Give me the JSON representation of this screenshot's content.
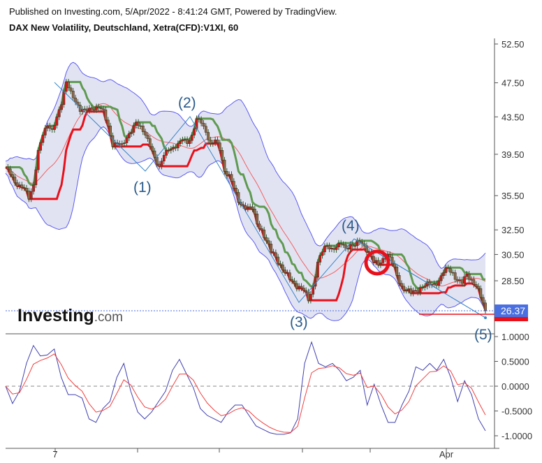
{
  "header": {
    "published": "Published on Investing.com, 5/Apr/2022 - 8:41:24 GMT, Powered by TradingView.",
    "title": "DAX New Volatility, Deutschland, Xetra(CFD):V1XI, 60"
  },
  "logo": {
    "main": "Investing",
    "suffix": ".com"
  },
  "colors": {
    "band_fill": "#e2e3f2",
    "band_line": "#5b5bf0",
    "sma": "#f06060",
    "green_line": "#5e9a50",
    "red_line": "#e8101a",
    "wave": "#3a86c8",
    "osc_blue": "#4040b0",
    "osc_red": "#f04040",
    "price_tag": "#4a6fe0"
  },
  "chart_data": [
    {
      "type": "candlestick",
      "scale": "log",
      "ylim": [
        24.0,
        54.0
      ],
      "y_ticks": [
        "52.50",
        "47.50",
        "43.50",
        "39.50",
        "35.50",
        "32.50",
        "30.50",
        "28.50"
      ],
      "x_ticks": [
        "7",
        "",
        "",
        "",
        "",
        "Apr"
      ],
      "last_price": "26.37",
      "close": [
        38.2,
        37.5,
        36.7,
        36.5,
        36.2,
        35.2,
        36.5,
        39.9,
        41.5,
        42.5,
        42.1,
        43.5,
        44.9,
        47.6,
        46.5,
        45.2,
        44.1,
        44.4,
        44.5,
        44.3,
        44.5,
        44.3,
        42.5,
        40.3,
        40.6,
        40.6,
        41.2,
        41.8,
        42.9,
        42.5,
        41.5,
        40.3,
        39.2,
        38.3,
        39.4,
        39.9,
        40.2,
        40.6,
        41.0,
        40.6,
        41.5,
        43.3,
        42.8,
        41.8,
        40.6,
        41.0,
        39.9,
        37.8,
        37.5,
        36.2,
        34.9,
        34.6,
        34.5,
        34.3,
        33.0,
        32.5,
        31.6,
        30.7,
        30.3,
        29.7,
        29.1,
        28.6,
        28.3,
        28.1,
        27.8,
        27.1,
        28.1,
        29.9,
        30.7,
        31.2,
        31.0,
        31.1,
        31.3,
        31.0,
        31.3,
        31.2,
        31.5,
        31.2,
        30.7,
        29.9,
        29.7,
        30.2,
        30.5,
        29.8,
        28.9,
        28.1,
        27.8,
        27.6,
        27.8,
        28.0,
        28.1,
        28.2,
        28.3,
        28.5,
        29.1,
        29.4,
        29.1,
        28.5,
        28.3,
        29.0,
        28.6,
        28.1,
        27.3,
        26.4
      ],
      "band_period": 20,
      "band_stddev": 2,
      "annotations": {
        "wave_labels": [
          "(1)",
          "(2)",
          "(3)",
          "(4)",
          "(5)"
        ]
      }
    },
    {
      "type": "line",
      "ylim": [
        -1.05,
        1.05
      ],
      "y_ticks": [
        "1.0000",
        "0.5000",
        "0.0000",
        "-0.5000",
        "-1.0000"
      ],
      "zero_line": "dashed",
      "series": [
        {
          "color": "#4040b0",
          "values": [
            0.0,
            -0.35,
            -0.1,
            0.46,
            0.82,
            0.61,
            0.63,
            0.75,
            0.18,
            -0.17,
            -0.17,
            -0.24,
            -0.66,
            -0.73,
            -0.45,
            -0.31,
            0.18,
            0.46,
            -0.1,
            -0.52,
            -0.66,
            -0.52,
            -0.31,
            -0.1,
            0.32,
            0.54,
            0.25,
            -0.03,
            -0.45,
            -0.59,
            -0.66,
            -0.73,
            -0.52,
            -0.38,
            -0.38,
            -0.59,
            -0.8,
            -0.87,
            -0.94,
            -0.97,
            -0.97,
            -0.94,
            -0.66,
            0.46,
            0.89,
            0.46,
            0.39,
            0.46,
            0.32,
            0.11,
            0.18,
            0.32,
            -0.38,
            0.04,
            -0.38,
            -0.73,
            -0.73,
            -0.38,
            -0.1,
            0.39,
            0.32,
            0.46,
            0.32,
            0.54,
            0.18,
            -0.31,
            0.11,
            -0.17,
            -0.66,
            -0.9
          ]
        }
      ]
    }
  ]
}
